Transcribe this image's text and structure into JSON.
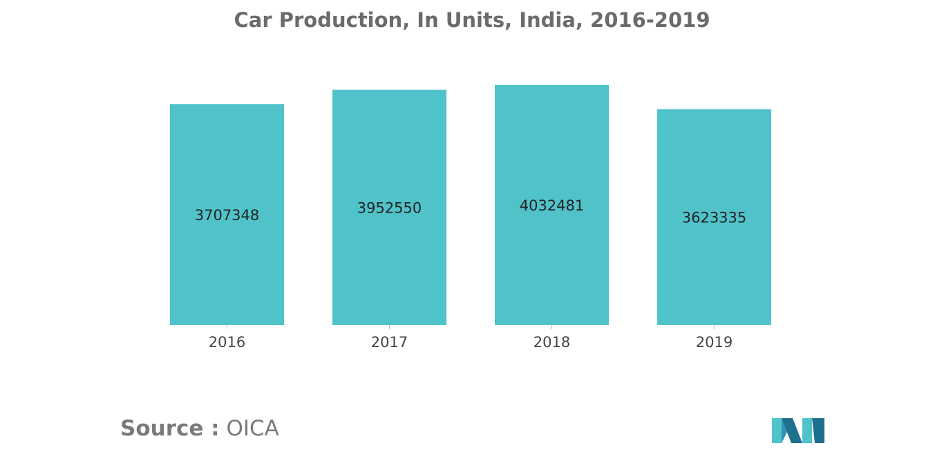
{
  "colors": {
    "bar": "#50c3ca",
    "title": "#6b6b6b",
    "label": "#222222",
    "tick": "#444444",
    "source": "#7a7a7a",
    "logo_dark": "#1f6f8f",
    "logo_light": "#50c3ca"
  },
  "chart_data": {
    "type": "bar",
    "title": "Car Production, In Units, India, 2016-2019",
    "xlabel": "",
    "ylabel": "",
    "categories": [
      "2016",
      "2017",
      "2018",
      "2019"
    ],
    "values": [
      3707348,
      3952550,
      4032481,
      3623335
    ],
    "data_labels": [
      "3707348",
      "3952550",
      "4032481",
      "3623335"
    ],
    "ylim": [
      0,
      4032481
    ],
    "grid": false,
    "legend": "none"
  },
  "source": {
    "label": "Source :",
    "value": "OICA"
  },
  "logo": {
    "icon": "mordor-intelligence-logo-icon"
  }
}
